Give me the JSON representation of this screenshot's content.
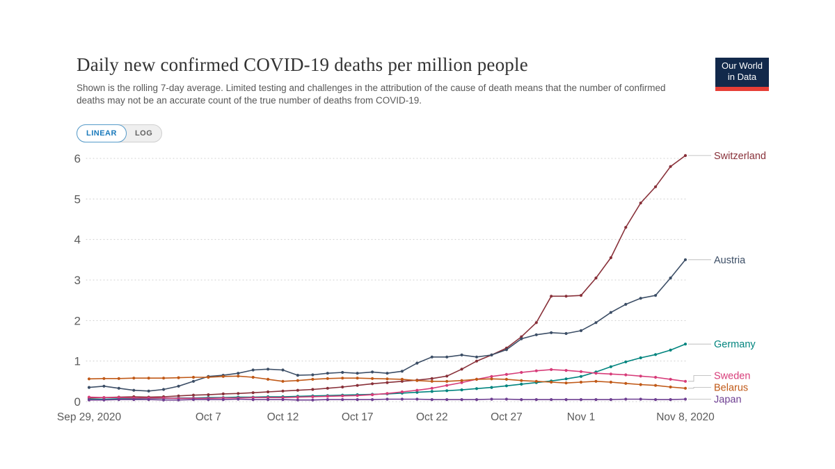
{
  "header": {
    "title": "Daily new confirmed COVID-19 deaths per million people",
    "subtitle": "Shown is the rolling 7-day average. Limited testing and challenges in the attribution of the cause of death means that the number of confirmed deaths may not be an accurate count of the true number of deaths from COVID-19.",
    "logo_line1": "Our World",
    "logo_line2": "in Data",
    "logo_bg": "#12294b",
    "logo_accent": "#e63e36"
  },
  "controls": {
    "linear_label": "LINEAR",
    "log_label": "LOG",
    "active": "LINEAR",
    "accent": "#1a7abc"
  },
  "chart_data": {
    "type": "line",
    "title": "Daily new confirmed COVID-19 deaths per million people",
    "xlabel": "",
    "ylabel": "",
    "ylim": [
      0,
      6.2
    ],
    "grid": true,
    "grid_style": "dotted",
    "legend_position": "right-entity-labels",
    "y_ticks": [
      0,
      1,
      2,
      3,
      4,
      5,
      6
    ],
    "x_ticks": [
      {
        "i": 0,
        "label": "Sep 29, 2020"
      },
      {
        "i": 8,
        "label": "Oct 7"
      },
      {
        "i": 13,
        "label": "Oct 12"
      },
      {
        "i": 18,
        "label": "Oct 17"
      },
      {
        "i": 23,
        "label": "Oct 22"
      },
      {
        "i": 28,
        "label": "Oct 27"
      },
      {
        "i": 33,
        "label": "Nov 1"
      },
      {
        "i": 40,
        "label": "Nov 8, 2020"
      }
    ],
    "x_range_days": 41,
    "series": [
      {
        "name": "Switzerland",
        "color": "#883039",
        "values": [
          0.09,
          0.1,
          0.11,
          0.12,
          0.11,
          0.12,
          0.14,
          0.16,
          0.17,
          0.19,
          0.2,
          0.22,
          0.24,
          0.26,
          0.28,
          0.3,
          0.33,
          0.36,
          0.4,
          0.44,
          0.47,
          0.5,
          0.53,
          0.57,
          0.63,
          0.8,
          1.0,
          1.15,
          1.32,
          1.6,
          1.95,
          2.6,
          2.6,
          2.62,
          3.05,
          3.55,
          4.3,
          4.9,
          5.3,
          5.8,
          6.07
        ]
      },
      {
        "name": "Austria",
        "color": "#3c4e66",
        "values": [
          0.35,
          0.38,
          0.33,
          0.28,
          0.26,
          0.3,
          0.38,
          0.5,
          0.62,
          0.65,
          0.7,
          0.78,
          0.8,
          0.78,
          0.65,
          0.66,
          0.7,
          0.72,
          0.7,
          0.73,
          0.7,
          0.75,
          0.95,
          1.1,
          1.1,
          1.15,
          1.1,
          1.15,
          1.28,
          1.55,
          1.65,
          1.7,
          1.68,
          1.75,
          1.95,
          2.2,
          2.4,
          2.55,
          2.62,
          3.05,
          3.5
        ]
      },
      {
        "name": "Germany",
        "color": "#00847e",
        "values": [
          0.06,
          0.06,
          0.07,
          0.07,
          0.08,
          0.08,
          0.09,
          0.09,
          0.1,
          0.1,
          0.11,
          0.11,
          0.12,
          0.12,
          0.13,
          0.14,
          0.15,
          0.16,
          0.17,
          0.18,
          0.19,
          0.21,
          0.23,
          0.25,
          0.27,
          0.29,
          0.32,
          0.35,
          0.39,
          0.43,
          0.47,
          0.51,
          0.56,
          0.62,
          0.73,
          0.86,
          0.98,
          1.08,
          1.16,
          1.27,
          1.42
        ]
      },
      {
        "name": "Sweden",
        "color": "#d73c79",
        "values": [
          0.11,
          0.1,
          0.1,
          0.09,
          0.09,
          0.09,
          0.08,
          0.08,
          0.08,
          0.09,
          0.09,
          0.1,
          0.1,
          0.1,
          0.11,
          0.12,
          0.13,
          0.14,
          0.15,
          0.17,
          0.2,
          0.24,
          0.28,
          0.33,
          0.4,
          0.47,
          0.55,
          0.62,
          0.67,
          0.72,
          0.76,
          0.79,
          0.77,
          0.74,
          0.7,
          0.68,
          0.66,
          0.63,
          0.6,
          0.55,
          0.5
        ]
      },
      {
        "name": "Belarus",
        "color": "#c05917",
        "values": [
          0.56,
          0.57,
          0.57,
          0.58,
          0.58,
          0.58,
          0.59,
          0.6,
          0.6,
          0.62,
          0.63,
          0.6,
          0.55,
          0.5,
          0.52,
          0.55,
          0.57,
          0.58,
          0.58,
          0.57,
          0.56,
          0.55,
          0.52,
          0.5,
          0.5,
          0.52,
          0.55,
          0.56,
          0.55,
          0.52,
          0.5,
          0.48,
          0.46,
          0.48,
          0.5,
          0.48,
          0.45,
          0.42,
          0.4,
          0.36,
          0.33
        ]
      },
      {
        "name": "Japan",
        "color": "#6d3e91",
        "values": [
          0.04,
          0.04,
          0.05,
          0.05,
          0.05,
          0.04,
          0.04,
          0.05,
          0.05,
          0.05,
          0.06,
          0.05,
          0.05,
          0.05,
          0.04,
          0.04,
          0.05,
          0.05,
          0.05,
          0.05,
          0.06,
          0.06,
          0.06,
          0.05,
          0.05,
          0.05,
          0.05,
          0.06,
          0.06,
          0.05,
          0.05,
          0.05,
          0.05,
          0.05,
          0.05,
          0.05,
          0.06,
          0.06,
          0.05,
          0.05,
          0.06
        ]
      }
    ]
  }
}
